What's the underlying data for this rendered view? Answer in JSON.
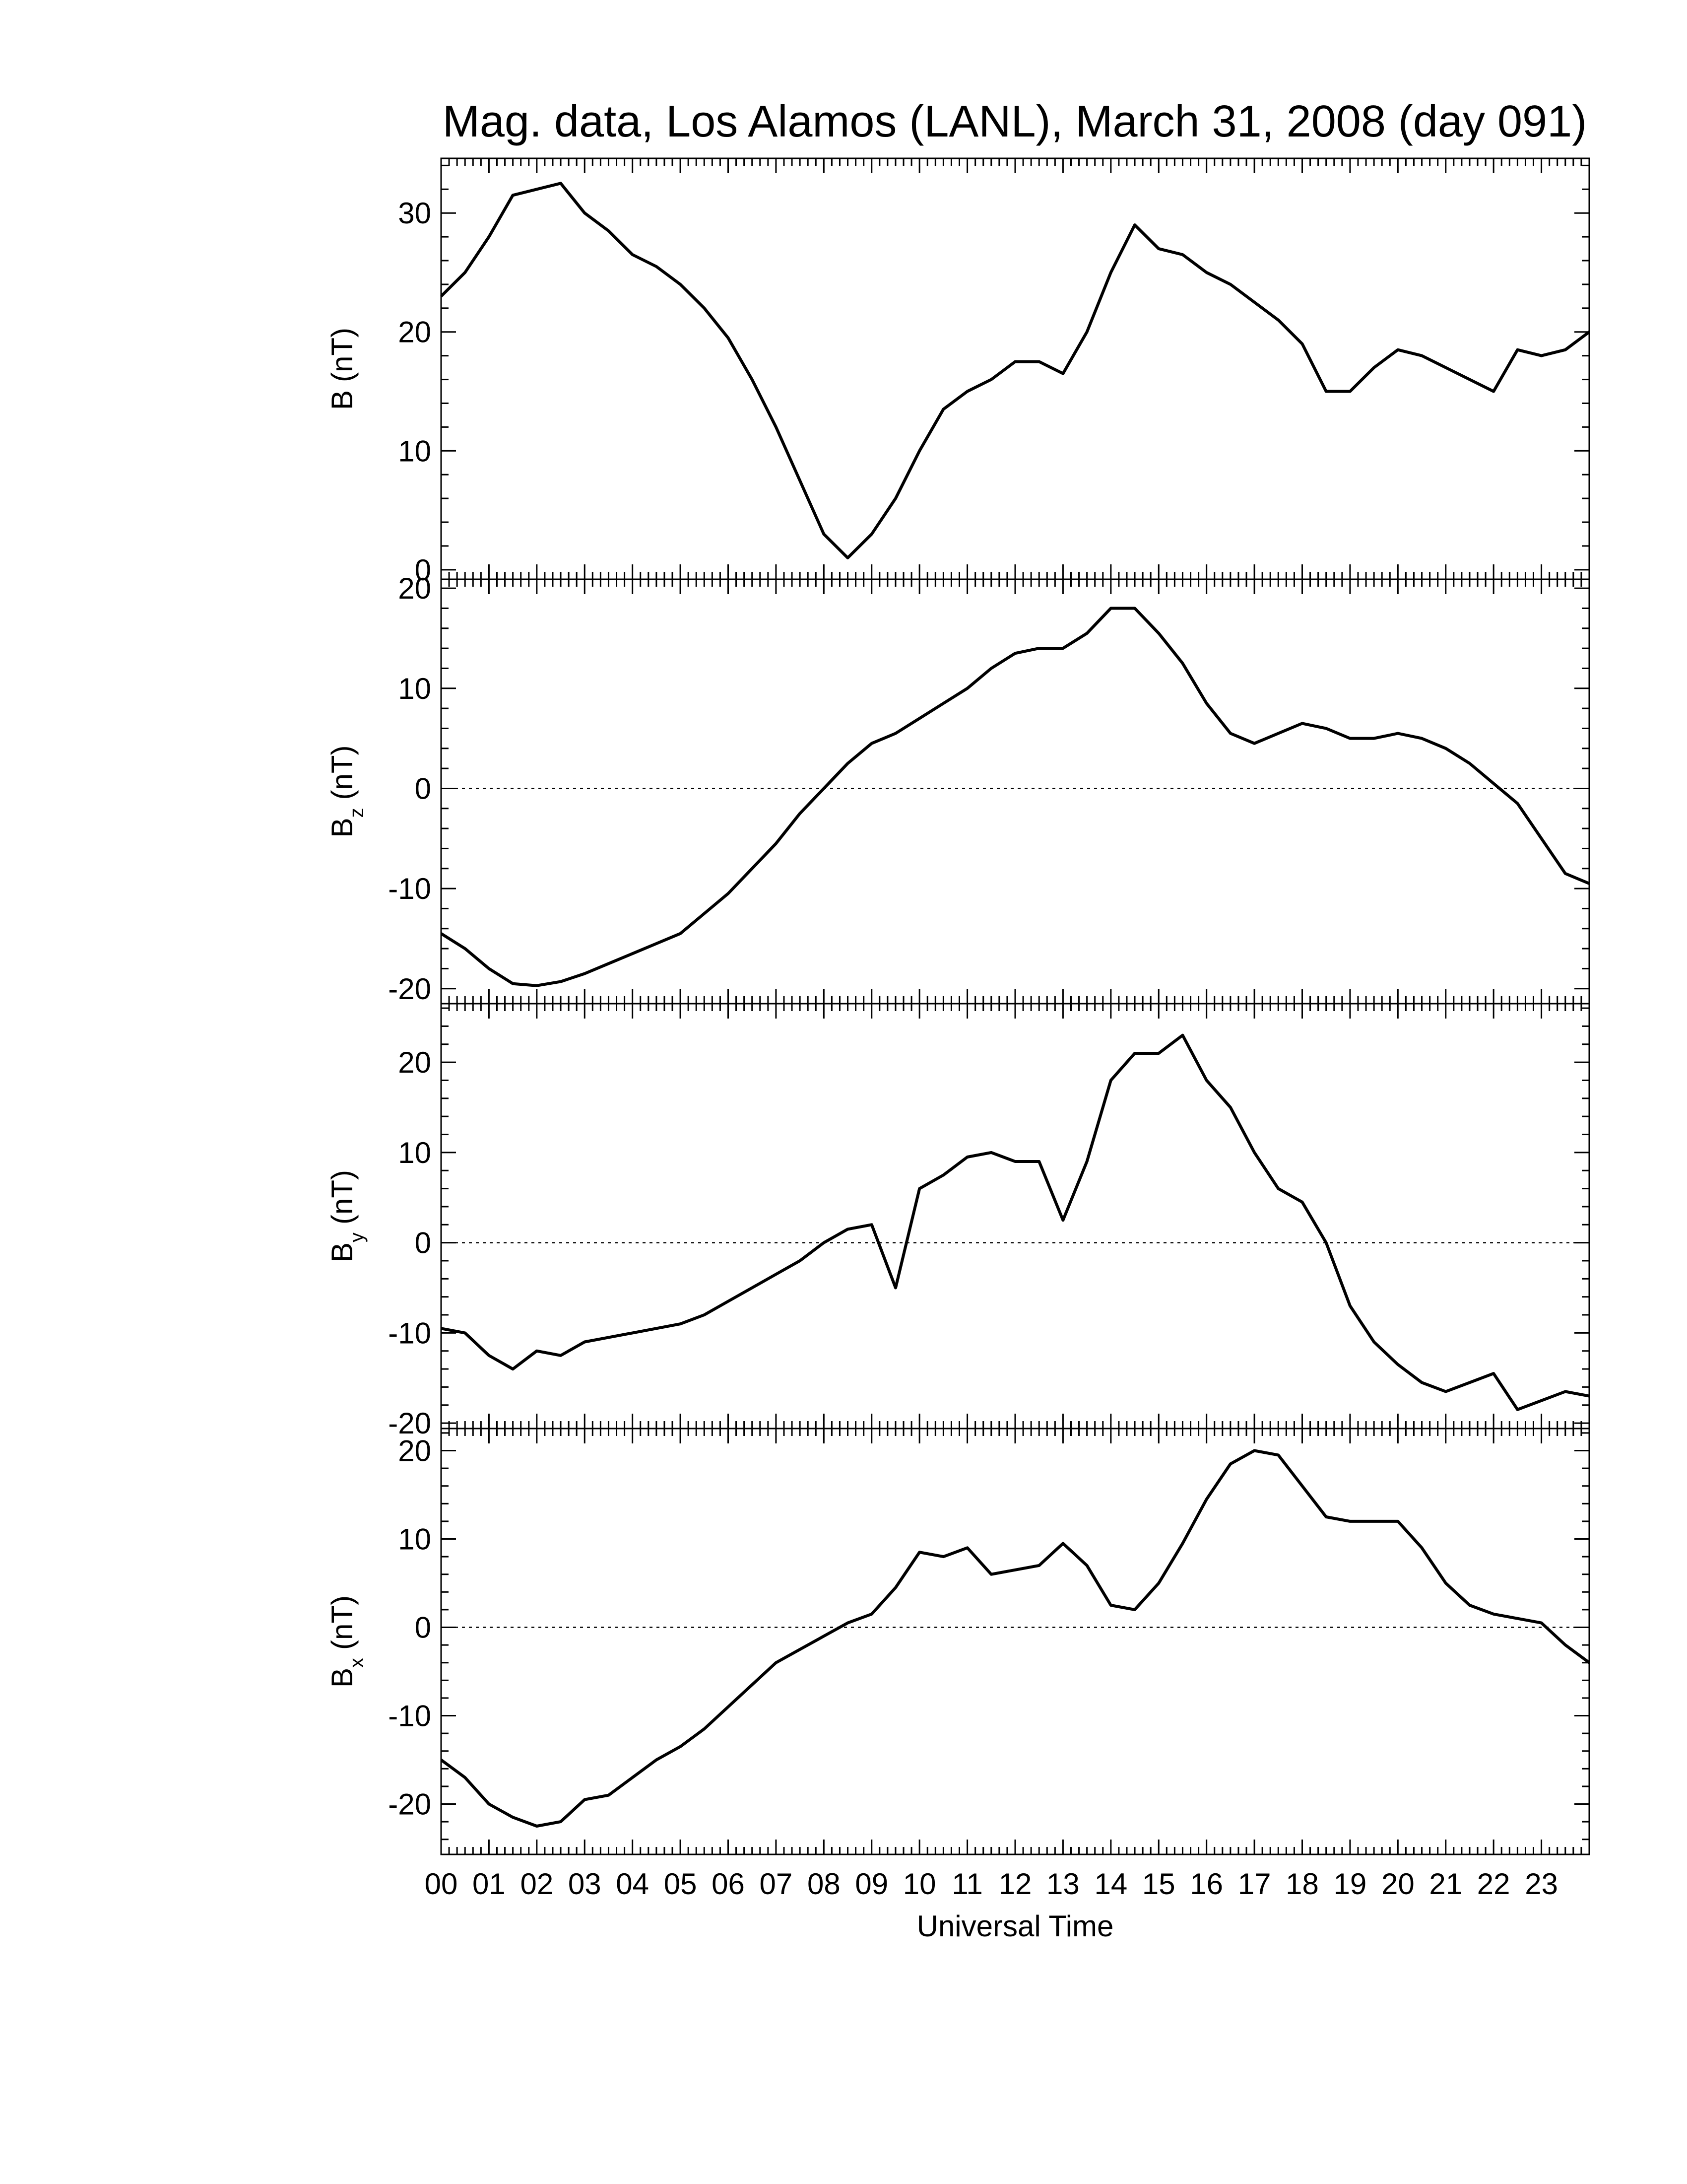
{
  "chart_data": [
    {
      "type": "line",
      "title": "Mag. data, Los Alamos (LANL), March 31, 2008 (day 091)",
      "ylabel": {
        "base": "B",
        "unit": "(nT)"
      },
      "x": [
        0,
        0.5,
        1,
        1.5,
        2,
        2.5,
        3,
        3.5,
        4,
        4.5,
        5,
        5.5,
        6,
        6.5,
        7,
        7.5,
        8,
        8.5,
        9,
        9.5,
        10,
        10.5,
        11,
        11.5,
        12,
        12.5,
        13,
        13.5,
        14,
        14.5,
        15,
        15.5,
        16,
        16.5,
        17,
        17.5,
        18,
        18.5,
        19,
        19.5,
        20,
        20.5,
        21,
        21.5,
        22,
        22.5,
        23,
        23.5,
        24
      ],
      "values": [
        23,
        25,
        28,
        31.5,
        32,
        32.5,
        30,
        28.5,
        26.5,
        25.5,
        24,
        22,
        19.5,
        16,
        12,
        7.5,
        3,
        1,
        3,
        6,
        10,
        13.5,
        15,
        16,
        17.5,
        17.5,
        16.5,
        20,
        25,
        29,
        27,
        26.5,
        25,
        24,
        22.5,
        21,
        19,
        15,
        15,
        17,
        18.5,
        18,
        17,
        16,
        15,
        18.5,
        18,
        18.5,
        20
      ],
      "color": "#000000",
      "xlim": [
        0,
        24
      ],
      "xticks": [
        0,
        1,
        2,
        3,
        4,
        5,
        6,
        7,
        8,
        9,
        10,
        11,
        12,
        13,
        14,
        15,
        16,
        17,
        18,
        19,
        20,
        21,
        22,
        23
      ],
      "xminor": 6,
      "ylim": [
        -0.8,
        34.6
      ],
      "yticks": [
        0,
        10,
        20,
        30
      ],
      "yminor": 5,
      "zero_line": false
    },
    {
      "type": "line",
      "ylabel": {
        "base": "B",
        "sub": "z",
        "unit": "(nT)"
      },
      "x": [
        0,
        0.5,
        1,
        1.5,
        2,
        2.5,
        3,
        3.5,
        4,
        4.5,
        5,
        5.5,
        6,
        6.5,
        7,
        7.5,
        8,
        8.5,
        9,
        9.5,
        10,
        10.5,
        11,
        11.5,
        12,
        12.5,
        13,
        13.5,
        14,
        14.5,
        15,
        15.5,
        16,
        16.5,
        17,
        17.5,
        18,
        18.5,
        19,
        19.5,
        20,
        20.5,
        21,
        21.5,
        22,
        22.5,
        23,
        23.5,
        24
      ],
      "values": [
        -14.5,
        -16,
        -18,
        -19.5,
        -19.7,
        -19.3,
        -18.5,
        -17.5,
        -16.5,
        -15.5,
        -14.5,
        -12.5,
        -10.5,
        -8,
        -5.5,
        -2.5,
        0,
        2.5,
        4.5,
        5.5,
        7,
        8.5,
        10,
        12,
        13.5,
        14,
        14,
        15.5,
        18,
        18,
        15.5,
        12.5,
        8.5,
        5.5,
        4.5,
        5.5,
        6.5,
        6,
        5,
        5,
        5.5,
        5,
        4,
        2.5,
        0.5,
        -1.5,
        -5,
        -8.5,
        -9.5
      ],
      "color": "#000000",
      "xlim": [
        0,
        24
      ],
      "xticks": [
        0,
        1,
        2,
        3,
        4,
        5,
        6,
        7,
        8,
        9,
        10,
        11,
        12,
        13,
        14,
        15,
        16,
        17,
        18,
        19,
        20,
        21,
        22,
        23
      ],
      "xminor": 6,
      "ylim": [
        -21.5,
        20.9
      ],
      "yticks": [
        -20,
        -10,
        0,
        10,
        20
      ],
      "yminor": 5,
      "zero_line": true
    },
    {
      "type": "line",
      "ylabel": {
        "base": "B",
        "sub": "y",
        "unit": "(nT)"
      },
      "x": [
        0,
        0.5,
        1,
        1.5,
        2,
        2.5,
        3,
        3.5,
        4,
        4.5,
        5,
        5.5,
        6,
        6.5,
        7,
        7.5,
        8,
        8.5,
        9,
        9.5,
        10,
        10.5,
        11,
        11.5,
        12,
        12.5,
        13,
        13.5,
        14,
        14.5,
        15,
        15.5,
        16,
        16.5,
        17,
        17.5,
        18,
        18.5,
        19,
        19.5,
        20,
        20.5,
        21,
        21.5,
        22,
        22.5,
        23,
        23.5,
        24
      ],
      "values": [
        -9.5,
        -10,
        -12.5,
        -14,
        -12,
        -12.5,
        -11,
        -10.5,
        -10,
        -9.5,
        -9,
        -8,
        -6.5,
        -5,
        -3.5,
        -2,
        0,
        1.5,
        2,
        -5,
        6,
        7.5,
        9.5,
        10,
        9,
        9,
        2.5,
        9,
        18,
        21,
        21,
        23,
        18,
        15,
        10,
        6,
        4.5,
        0,
        -7,
        -11,
        -13.5,
        -15.5,
        -16.5,
        -15.5,
        -14.5,
        -18.5,
        -17.5,
        -16.5,
        -17
      ],
      "color": "#000000",
      "xlim": [
        0,
        24
      ],
      "xticks": [
        0,
        1,
        2,
        3,
        4,
        5,
        6,
        7,
        8,
        9,
        10,
        11,
        12,
        13,
        14,
        15,
        16,
        17,
        18,
        19,
        20,
        21,
        22,
        23
      ],
      "xminor": 6,
      "ylim": [
        -20.6,
        26.5
      ],
      "yticks": [
        -20,
        -10,
        0,
        10,
        20
      ],
      "yminor": 5,
      "zero_line": true
    },
    {
      "type": "line",
      "ylabel": {
        "base": "B",
        "sub": "x",
        "unit": "(nT)"
      },
      "xlabel": "Universal Time",
      "x": [
        0,
        0.5,
        1,
        1.5,
        2,
        2.5,
        3,
        3.5,
        4,
        4.5,
        5,
        5.5,
        6,
        6.5,
        7,
        7.5,
        8,
        8.5,
        9,
        9.5,
        10,
        10.5,
        11,
        11.5,
        12,
        12.5,
        13,
        13.5,
        14,
        14.5,
        15,
        15.5,
        16,
        16.5,
        17,
        17.5,
        18,
        18.5,
        19,
        19.5,
        20,
        20.5,
        21,
        21.5,
        22,
        22.5,
        23,
        23.5,
        24
      ],
      "values": [
        -15,
        -17,
        -20,
        -21.5,
        -22.5,
        -22,
        -19.5,
        -19,
        -17,
        -15,
        -13.5,
        -11.5,
        -9,
        -6.5,
        -4,
        -2.5,
        -1,
        0.5,
        1.5,
        4.5,
        8.5,
        8,
        9,
        6,
        6.5,
        7,
        9.5,
        7,
        2.5,
        2,
        5,
        9.5,
        14.5,
        18.5,
        20,
        19.5,
        16,
        12.5,
        12,
        12,
        12,
        9,
        5,
        2.5,
        1.5,
        1,
        0.5,
        -2,
        -4
      ],
      "color": "#000000",
      "xlim": [
        0,
        24
      ],
      "xticks": [
        {
          "value": 0,
          "label": "00"
        },
        {
          "value": 1,
          "label": "01"
        },
        {
          "value": 2,
          "label": "02"
        },
        {
          "value": 3,
          "label": "03"
        },
        {
          "value": 4,
          "label": "04"
        },
        {
          "value": 5,
          "label": "05"
        },
        {
          "value": 6,
          "label": "06"
        },
        {
          "value": 7,
          "label": "07"
        },
        {
          "value": 8,
          "label": "08"
        },
        {
          "value": 9,
          "label": "09"
        },
        {
          "value": 10,
          "label": "10"
        },
        {
          "value": 11,
          "label": "11"
        },
        {
          "value": 12,
          "label": "12"
        },
        {
          "value": 13,
          "label": "13"
        },
        {
          "value": 14,
          "label": "14"
        },
        {
          "value": 15,
          "label": "15"
        },
        {
          "value": 16,
          "label": "16"
        },
        {
          "value": 17,
          "label": "17"
        },
        {
          "value": 18,
          "label": "18"
        },
        {
          "value": 19,
          "label": "19"
        },
        {
          "value": 20,
          "label": "20"
        },
        {
          "value": 21,
          "label": "21"
        },
        {
          "value": 22,
          "label": "22"
        },
        {
          "value": 23,
          "label": "23"
        }
      ],
      "xminor": 6,
      "ylim": [
        -25.7,
        22.5
      ],
      "yticks": [
        -20,
        -10,
        0,
        10,
        20
      ],
      "yminor": 5,
      "zero_line": true
    }
  ]
}
